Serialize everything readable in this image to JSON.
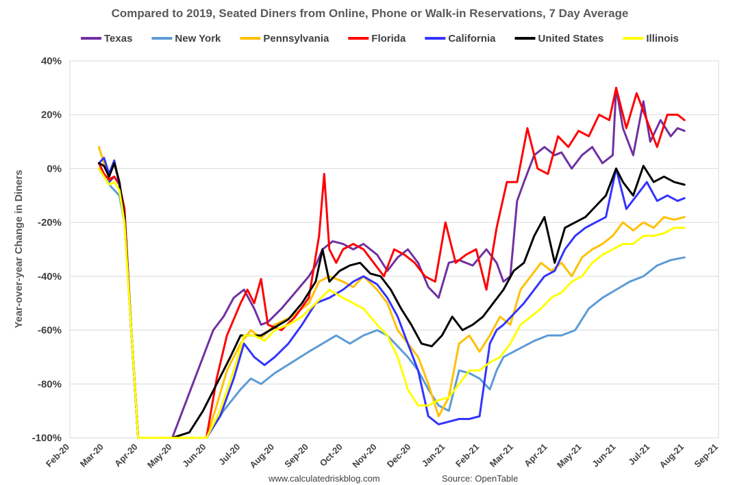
{
  "chart_data": {
    "type": "line",
    "title": "Compared to 2019, Seated Diners from Online, Phone or Walk-in Reservations, 7 Day Average",
    "xlabel": "",
    "ylabel": "Year-over-year Change in Diners",
    "ylim": [
      -100,
      40
    ],
    "yticks": [
      "40%",
      "20%",
      "0%",
      "-20%",
      "-40%",
      "-60%",
      "-80%",
      "-100%"
    ],
    "ytick_values": [
      40,
      20,
      0,
      -20,
      -40,
      -60,
      -80,
      -100
    ],
    "xlim": [
      0,
      19
    ],
    "xticks": [
      "Feb-20",
      "Mar-20",
      "Apr-20",
      "May-20",
      "Jun-20",
      "Jul-20",
      "Aug-20",
      "Sep-20",
      "Oct-20",
      "Nov-20",
      "Dec-20",
      "Jan-21",
      "Feb-21",
      "Mar-21",
      "Apr-21",
      "May-21",
      "Jun-21",
      "Jul-21",
      "Aug-21",
      "Sep-21"
    ],
    "grid": true,
    "legend": "top",
    "series": [
      {
        "name": "Texas",
        "color": "#7030A0",
        "x": [
          0.85,
          1.0,
          1.15,
          1.3,
          1.45,
          1.6,
          1.8,
          2.0,
          3.0,
          3.3,
          3.6,
          3.9,
          4.2,
          4.5,
          4.8,
          5.1,
          5.4,
          5.6,
          5.8,
          6.2,
          6.6,
          7.0,
          7.2,
          7.4,
          7.7,
          8.0,
          8.3,
          8.6,
          9.0,
          9.3,
          9.6,
          9.9,
          10.2,
          10.5,
          10.8,
          11.1,
          11.4,
          11.8,
          12.2,
          12.5,
          12.7,
          12.9,
          13.1,
          13.3,
          13.6,
          13.9,
          14.2,
          14.4,
          14.7,
          15.0,
          15.3,
          15.6,
          15.9,
          16.0,
          16.2,
          16.5,
          16.8,
          17.0,
          17.3,
          17.6,
          17.8,
          18.0
        ],
        "values": [
          0,
          -3,
          -5,
          -3,
          -6,
          -15,
          -60,
          -100,
          -100,
          -90,
          -80,
          -70,
          -60,
          -55,
          -48,
          -45,
          -52,
          -58,
          -57,
          -52,
          -46,
          -40,
          -36,
          -30,
          -27,
          -28,
          -30,
          -28,
          -32,
          -38,
          -33,
          -30,
          -35,
          -44,
          -48,
          -35,
          -34,
          -36,
          -30,
          -35,
          -42,
          -40,
          -12,
          -5,
          5,
          8,
          5,
          6,
          0,
          5,
          8,
          2,
          5,
          30,
          15,
          5,
          25,
          10,
          18,
          12,
          15,
          14
        ]
      },
      {
        "name": "New York",
        "color": "#5B9BD5",
        "x": [
          0.85,
          1.0,
          1.15,
          1.3,
          1.45,
          1.6,
          1.8,
          2.0,
          3.0,
          4.0,
          4.5,
          5.0,
          5.3,
          5.6,
          6.0,
          6.5,
          7.0,
          7.4,
          7.8,
          8.2,
          8.6,
          9.0,
          9.3,
          9.6,
          9.9,
          10.2,
          10.5,
          10.8,
          11.1,
          11.4,
          11.7,
          12.0,
          12.3,
          12.5,
          12.7,
          13.0,
          13.3,
          13.6,
          14.0,
          14.4,
          14.8,
          15.2,
          15.6,
          16.0,
          16.4,
          16.8,
          17.2,
          17.6,
          18.0
        ],
        "values": [
          0,
          -2,
          -6,
          -8,
          -10,
          -20,
          -60,
          -100,
          -100,
          -100,
          -90,
          -82,
          -78,
          -80,
          -76,
          -72,
          -68,
          -65,
          -62,
          -65,
          -62,
          -60,
          -62,
          -66,
          -70,
          -75,
          -82,
          -88,
          -90,
          -75,
          -76,
          -78,
          -82,
          -75,
          -70,
          -68,
          -66,
          -64,
          -62,
          -62,
          -60,
          -52,
          -48,
          -45,
          -42,
          -40,
          -36,
          -34,
          -33
        ]
      },
      {
        "name": "Pennsylvania",
        "color": "#FFC000",
        "x": [
          0.85,
          1.0,
          1.15,
          1.3,
          1.45,
          1.6,
          1.8,
          2.0,
          3.0,
          4.0,
          4.3,
          4.6,
          5.0,
          5.3,
          5.6,
          6.0,
          6.5,
          7.0,
          7.3,
          7.6,
          8.0,
          8.3,
          8.6,
          9.0,
          9.3,
          9.6,
          9.9,
          10.2,
          10.5,
          10.8,
          11.1,
          11.4,
          11.7,
          12.0,
          12.3,
          12.6,
          12.9,
          13.2,
          13.5,
          13.8,
          14.1,
          14.4,
          14.7,
          15.0,
          15.3,
          15.6,
          15.9,
          16.2,
          16.5,
          16.8,
          17.1,
          17.4,
          17.7,
          18.0
        ],
        "values": [
          8,
          2,
          -3,
          3,
          -5,
          -20,
          -60,
          -100,
          -100,
          -100,
          -88,
          -75,
          -65,
          -60,
          -63,
          -58,
          -55,
          -50,
          -42,
          -40,
          -42,
          -44,
          -40,
          -45,
          -50,
          -60,
          -65,
          -70,
          -80,
          -92,
          -85,
          -65,
          -62,
          -68,
          -62,
          -55,
          -58,
          -45,
          -40,
          -35,
          -38,
          -35,
          -40,
          -33,
          -30,
          -28,
          -25,
          -20,
          -23,
          -20,
          -22,
          -18,
          -19,
          -18
        ]
      },
      {
        "name": "Florida",
        "color": "#FF0000",
        "x": [
          0.85,
          1.0,
          1.15,
          1.3,
          1.45,
          1.6,
          1.8,
          2.0,
          3.0,
          4.0,
          4.3,
          4.6,
          5.0,
          5.2,
          5.4,
          5.6,
          5.8,
          6.2,
          6.6,
          7.0,
          7.3,
          7.45,
          7.6,
          7.8,
          8.0,
          8.3,
          8.6,
          8.9,
          9.2,
          9.5,
          9.8,
          10.1,
          10.4,
          10.7,
          11.0,
          11.3,
          11.6,
          11.9,
          12.2,
          12.5,
          12.8,
          13.1,
          13.4,
          13.7,
          14.0,
          14.3,
          14.6,
          14.9,
          15.2,
          15.5,
          15.8,
          16.0,
          16.3,
          16.6,
          16.9,
          17.2,
          17.5,
          17.8,
          18.0
        ],
        "values": [
          2,
          -2,
          -4,
          -3,
          -6,
          -15,
          -60,
          -100,
          -100,
          -100,
          -78,
          -62,
          -50,
          -45,
          -50,
          -41,
          -58,
          -60,
          -55,
          -48,
          -25,
          -2,
          -30,
          -35,
          -30,
          -28,
          -30,
          -35,
          -40,
          -30,
          -32,
          -35,
          -40,
          -42,
          -20,
          -35,
          -32,
          -30,
          -45,
          -22,
          -5,
          -5,
          15,
          0,
          -2,
          12,
          8,
          14,
          12,
          20,
          18,
          30,
          15,
          28,
          18,
          8,
          20,
          20,
          18
        ]
      },
      {
        "name": "California",
        "color": "#3333FF",
        "x": [
          0.85,
          1.0,
          1.15,
          1.3,
          1.45,
          1.6,
          1.8,
          2.0,
          3.0,
          4.0,
          4.4,
          4.8,
          5.1,
          5.4,
          5.7,
          6.0,
          6.4,
          6.8,
          7.2,
          7.6,
          8.0,
          8.3,
          8.6,
          9.0,
          9.3,
          9.6,
          9.9,
          10.2,
          10.5,
          10.8,
          11.1,
          11.4,
          11.7,
          12.0,
          12.3,
          12.5,
          12.7,
          13.0,
          13.3,
          13.6,
          13.9,
          14.2,
          14.5,
          14.8,
          15.1,
          15.4,
          15.7,
          16.0,
          16.3,
          16.6,
          16.9,
          17.2,
          17.5,
          17.8,
          18.0
        ],
        "values": [
          2,
          4,
          -2,
          3,
          -6,
          -18,
          -60,
          -100,
          -100,
          -100,
          -92,
          -78,
          -65,
          -70,
          -73,
          -70,
          -65,
          -58,
          -50,
          -48,
          -45,
          -42,
          -40,
          -43,
          -48,
          -55,
          -65,
          -75,
          -92,
          -95,
          -94,
          -93,
          -93,
          -92,
          -65,
          -60,
          -58,
          -54,
          -50,
          -45,
          -40,
          -38,
          -30,
          -25,
          -22,
          -20,
          -18,
          0,
          -15,
          -10,
          -5,
          -12,
          -10,
          -12,
          -11
        ]
      },
      {
        "name": "United States",
        "color": "#000000",
        "x": [
          0.85,
          1.0,
          1.15,
          1.3,
          1.45,
          1.6,
          1.8,
          2.0,
          3.0,
          3.5,
          3.9,
          4.3,
          4.7,
          5.0,
          5.3,
          5.6,
          6.0,
          6.4,
          6.8,
          7.2,
          7.4,
          7.6,
          7.9,
          8.2,
          8.5,
          8.8,
          9.1,
          9.4,
          9.7,
          10.0,
          10.3,
          10.6,
          10.9,
          11.2,
          11.5,
          11.8,
          12.1,
          12.4,
          12.7,
          13.0,
          13.3,
          13.6,
          13.9,
          14.2,
          14.5,
          14.8,
          15.1,
          15.4,
          15.7,
          16.0,
          16.2,
          16.5,
          16.8,
          17.1,
          17.4,
          17.7,
          18.0
        ],
        "values": [
          2,
          1,
          -3,
          2,
          -5,
          -18,
          -60,
          -100,
          -100,
          -98,
          -90,
          -80,
          -70,
          -62,
          -62,
          -62,
          -59,
          -56,
          -50,
          -42,
          -30,
          -42,
          -38,
          -36,
          -35,
          -39,
          -40,
          -45,
          -52,
          -58,
          -65,
          -66,
          -62,
          -55,
          -60,
          -58,
          -55,
          -50,
          -45,
          -38,
          -35,
          -25,
          -18,
          -35,
          -22,
          -20,
          -18,
          -14,
          -10,
          0,
          -5,
          -10,
          1,
          -5,
          -3,
          -5,
          -6
        ]
      },
      {
        "name": "Illinois",
        "color": "#FFFF00",
        "x": [
          0.85,
          1.0,
          1.15,
          1.3,
          1.45,
          1.6,
          1.8,
          2.0,
          3.0,
          4.0,
          4.4,
          4.8,
          5.1,
          5.4,
          5.7,
          6.0,
          6.4,
          6.8,
          7.2,
          7.6,
          8.0,
          8.3,
          8.6,
          9.0,
          9.3,
          9.6,
          9.9,
          10.2,
          10.5,
          10.8,
          11.1,
          11.4,
          11.7,
          12.0,
          12.3,
          12.6,
          12.9,
          13.2,
          13.5,
          13.8,
          14.1,
          14.4,
          14.7,
          15.0,
          15.3,
          15.6,
          15.9,
          16.2,
          16.5,
          16.8,
          17.1,
          17.4,
          17.7,
          18.0
        ],
        "values": [
          0,
          -3,
          -6,
          -5,
          -8,
          -20,
          -60,
          -100,
          -100,
          -100,
          -90,
          -75,
          -62,
          -62,
          -64,
          -60,
          -58,
          -55,
          -50,
          -45,
          -48,
          -50,
          -52,
          -58,
          -62,
          -70,
          -82,
          -88,
          -88,
          -86,
          -85,
          -80,
          -75,
          -75,
          -72,
          -70,
          -65,
          -58,
          -55,
          -52,
          -48,
          -46,
          -42,
          -40,
          -35,
          -32,
          -30,
          -28,
          -28,
          -25,
          -25,
          -24,
          -22,
          -22
        ]
      }
    ]
  },
  "footer": {
    "website": "www.calculatedriskblog.com",
    "source": "Source: OpenTable"
  }
}
